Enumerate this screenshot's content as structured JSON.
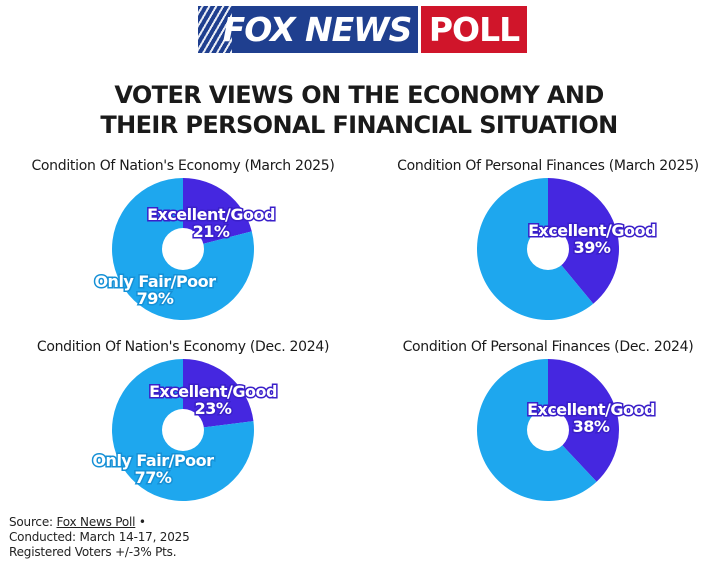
{
  "logo": {
    "text_left": "FOX NEWS",
    "text_right": "POLL"
  },
  "title": {
    "line1": "VOTER VIEWS ON THE ECONOMY AND",
    "line2": "THEIR PERSONAL FINANCIAL SITUATION"
  },
  "colors": {
    "positive": "#4527e0",
    "negative": "#1ea7ee",
    "hole": "#ffffff"
  },
  "chart_data": [
    {
      "type": "pie",
      "title": "Condition Of Nation's Economy (March 2025)",
      "slices": [
        {
          "label": "Excellent/Good",
          "value": 21,
          "display": "21%"
        },
        {
          "label": "Only Fair/Poor",
          "value": 79,
          "display": "79%"
        }
      ]
    },
    {
      "type": "pie",
      "title": "Condition Of Personal Finances (March 2025)",
      "slices": [
        {
          "label": "Excellent/Good",
          "value": 39,
          "display": "39%"
        },
        {
          "label": "",
          "value": 61,
          "display": ""
        }
      ]
    },
    {
      "type": "pie",
      "title": "Condition Of Nation's Economy (Dec. 2024)",
      "slices": [
        {
          "label": "Excellent/Good",
          "value": 23,
          "display": "23%"
        },
        {
          "label": "Only Fair/Poor",
          "value": 77,
          "display": "77%"
        }
      ]
    },
    {
      "type": "pie",
      "title": "Condition Of Personal Finances (Dec. 2024)",
      "slices": [
        {
          "label": "Excellent/Good",
          "value": 38,
          "display": "38%"
        },
        {
          "label": "",
          "value": 62,
          "display": ""
        }
      ]
    }
  ],
  "source": {
    "prefix": "Source: ",
    "link": "Fox News Poll",
    "suffix": " •",
    "conducted": "Conducted: March 14-17, 2025",
    "sample": "Registered Voters +/-3% Pts."
  }
}
